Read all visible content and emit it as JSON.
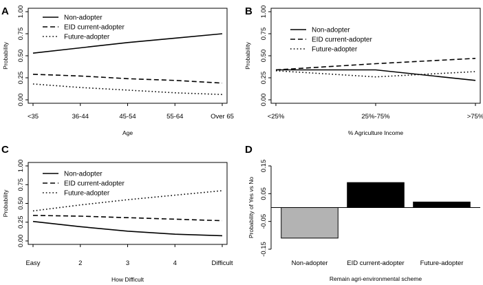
{
  "chart_data": [
    {
      "panel": "A",
      "type": "line",
      "categories": [
        "<35",
        "36-44",
        "45-54",
        "55-64",
        "Over 65"
      ],
      "xlabel": "Age",
      "ylabel": "Probability",
      "ylim": [
        0,
        1
      ],
      "yticks": [
        "0.00",
        "0.25",
        "0.50",
        "0.75",
        "1.00"
      ],
      "legend_position": "top-left",
      "series": [
        {
          "name": "Non-adopter",
          "style": "solid",
          "values": [
            0.53,
            0.59,
            0.65,
            0.7,
            0.75
          ]
        },
        {
          "name": "EID current-adopter",
          "style": "dashed",
          "values": [
            0.29,
            0.27,
            0.24,
            0.22,
            0.19
          ]
        },
        {
          "name": "Future-adopter",
          "style": "dotted",
          "values": [
            0.18,
            0.14,
            0.11,
            0.08,
            0.06
          ]
        }
      ]
    },
    {
      "panel": "B",
      "type": "line",
      "categories": [
        "<25%",
        "25%-75%",
        ">75%"
      ],
      "xlabel": "% Agriculture Income",
      "ylabel": "Probability",
      "ylim": [
        0,
        1
      ],
      "yticks": [
        "0.00",
        "0.25",
        "0.50",
        "0.75",
        "1.00"
      ],
      "legend_position": "top-left",
      "series": [
        {
          "name": "Non-adopter",
          "style": "solid",
          "values": [
            0.34,
            0.34,
            0.22
          ]
        },
        {
          "name": "EID current-adopter",
          "style": "dashed",
          "values": [
            0.34,
            0.41,
            0.47
          ]
        },
        {
          "name": "Future-adopter",
          "style": "dotted",
          "values": [
            0.33,
            0.26,
            0.32
          ]
        }
      ]
    },
    {
      "panel": "C",
      "type": "line",
      "categories": [
        "Easy",
        "2",
        "3",
        "4",
        "Difficult"
      ],
      "xlabel": "How Difficult",
      "ylabel": "Probability",
      "ylim": [
        0,
        1
      ],
      "yticks": [
        "0.00",
        "0.25",
        "0.50",
        "0.75",
        "1.00"
      ],
      "legend_position": "top-left",
      "series": [
        {
          "name": "Non-adopter",
          "style": "solid",
          "values": [
            0.26,
            0.19,
            0.13,
            0.09,
            0.07
          ]
        },
        {
          "name": "EID current-adopter",
          "style": "dashed",
          "values": [
            0.34,
            0.33,
            0.31,
            0.29,
            0.27
          ]
        },
        {
          "name": "Future-adopter",
          "style": "dotted",
          "values": [
            0.4,
            0.48,
            0.55,
            0.61,
            0.67
          ]
        }
      ]
    },
    {
      "panel": "D",
      "type": "bar",
      "categories": [
        "Non-adopter",
        "EID current-adopter",
        "Future-adopter"
      ],
      "values": [
        -0.11,
        0.09,
        0.02
      ],
      "colors": [
        "#b3b3b3",
        "#000000",
        "#000000"
      ],
      "xlabel": "Remain agri-environmental scheme",
      "ylabel": "Probability of Yes vs No",
      "ylim": [
        -0.15,
        0.15
      ],
      "yticks": [
        "-0.15",
        "-0.05",
        "0.05",
        "0.15"
      ]
    }
  ]
}
